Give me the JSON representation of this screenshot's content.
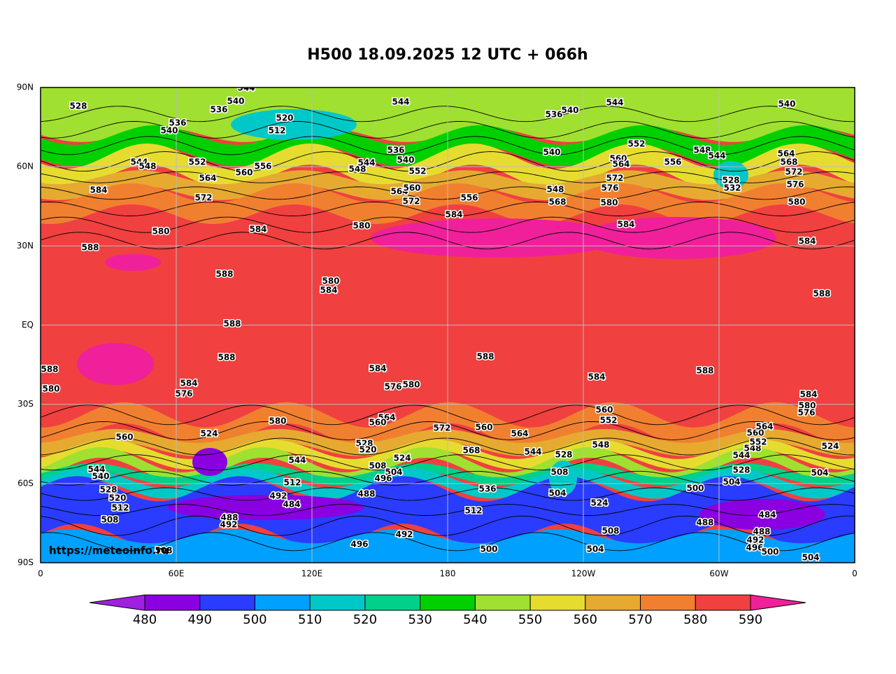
{
  "title": "H500  18.09.2025 12 UTC + 066h",
  "lat_ticks": [
    "90N",
    "60N",
    "30N",
    "EQ",
    "30S",
    "60S",
    "90S"
  ],
  "lon_ticks": [
    "0",
    "60E",
    "120E",
    "180",
    "120W",
    "60W",
    "0"
  ],
  "watermark": "https://meteoinfo.ru",
  "colorbar": {
    "levels": [
      480,
      490,
      500,
      510,
      520,
      530,
      540,
      550,
      560,
      570,
      580,
      590
    ],
    "colors": [
      "#a020e0",
      "#8a00e0",
      "#2a3cff",
      "#00a0ff",
      "#00c8c8",
      "#00d08a",
      "#00d000",
      "#a0e030",
      "#e6dc30",
      "#e6aa30",
      "#f08030",
      "#f04040",
      "#f0209a"
    ]
  },
  "contour_labels": [
    "528",
    "536",
    "540",
    "544",
    "512",
    "520",
    "540",
    "536",
    "544",
    "536",
    "540",
    "544",
    "540",
    "544",
    "548",
    "552",
    "564",
    "560",
    "556",
    "572",
    "584",
    "584",
    "588",
    "588",
    "588",
    "588",
    "588",
    "580",
    "584",
    "576",
    "580",
    "560",
    "548",
    "544",
    "536",
    "540",
    "552",
    "564",
    "560",
    "572",
    "556",
    "584",
    "580",
    "580",
    "580",
    "584",
    "540",
    "548",
    "568",
    "560",
    "564",
    "572",
    "576",
    "580",
    "584",
    "552",
    "556",
    "548",
    "544",
    "528",
    "532",
    "580",
    "584",
    "588",
    "576",
    "572",
    "568",
    "564",
    "588",
    "588",
    "584",
    "576",
    "580",
    "584",
    "560",
    "552",
    "548",
    "560",
    "568",
    "564",
    "544",
    "528",
    "508",
    "504",
    "536",
    "512",
    "572",
    "564",
    "560",
    "528",
    "520",
    "524",
    "508",
    "504",
    "496",
    "544",
    "512",
    "492",
    "484",
    "488",
    "488",
    "492",
    "496",
    "492",
    "500",
    "504",
    "508",
    "524",
    "488",
    "484",
    "488",
    "492",
    "496",
    "500",
    "504",
    "504",
    "500",
    "528",
    "544",
    "548",
    "552",
    "560",
    "564",
    "584",
    "580",
    "576",
    "524",
    "504",
    "508",
    "512",
    "520",
    "528",
    "540",
    "544",
    "524",
    "508"
  ]
}
